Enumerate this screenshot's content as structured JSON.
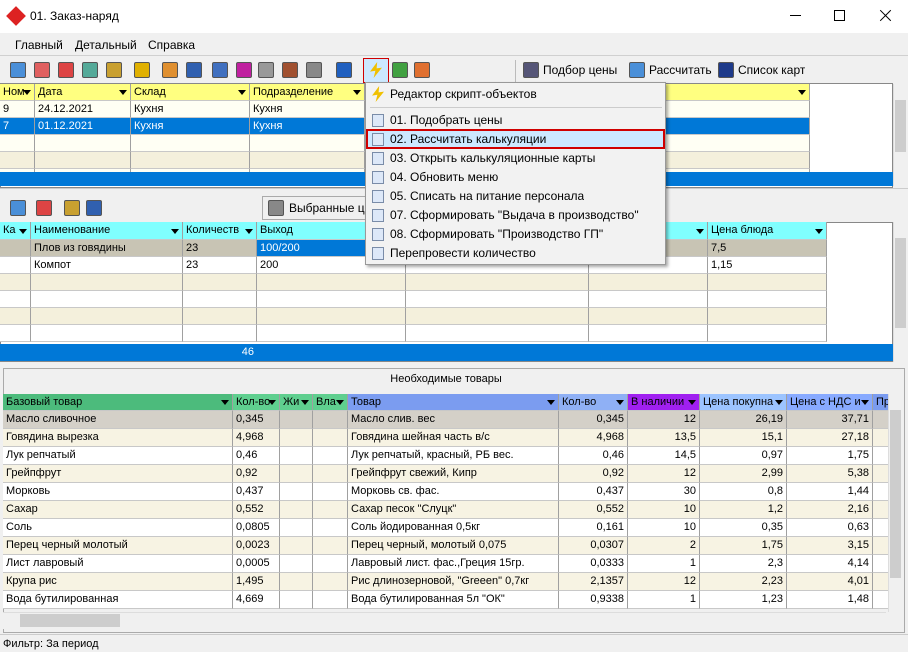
{
  "window": {
    "title": "01. Заказ-наряд"
  },
  "menu": [
    "Главный",
    "Детальный",
    "Справка"
  ],
  "toolbar": {
    "buttons": [
      "Подбор цены",
      "Рассчитать",
      "Список карт"
    ]
  },
  "orders": {
    "columns": [
      "Ном",
      "Дата",
      "Склад",
      "Подразделение"
    ],
    "rows": [
      [
        "9",
        "24.12.2021",
        "Кухня",
        "Кухня"
      ],
      [
        "7",
        "01.12.2021",
        "Кухня",
        "Кухня"
      ]
    ]
  },
  "script_menu": {
    "header": "Редактор скрипт-объектов",
    "items": [
      "01. Подобрать цены",
      "02. Рассчитать калькуляции",
      "03. Открыть калькуляционные карты",
      "04. Обновить меню",
      "05. Списать на питание персонала",
      "07. Сформировать \"Выдача в производство\"",
      "08. Сформировать \"Производство ГП\"",
      "Перепровести количество"
    ]
  },
  "detail_toolbar": {
    "tab": "Выбранные ц"
  },
  "dishes": {
    "columns": [
      "Ка",
      "Наименование",
      "Количеств",
      "Выход",
      "Цена блюда"
    ],
    "rows": [
      [
        "Плов из говядины",
        "23",
        "100/200",
        "7,5"
      ],
      [
        "Компот",
        "23",
        "200",
        "1,15"
      ]
    ],
    "total": "46"
  },
  "goods": {
    "title": "Необходимые товары",
    "columns": [
      "Базовый товар",
      "Кол-во",
      "Жи",
      "Вла",
      "Товар",
      "Кол-во",
      "В наличии",
      "Цена покупна",
      "Цена с НДС и",
      "Пр"
    ],
    "rows": [
      [
        "Масло сливочное",
        "0,345",
        "Масло слив. вес",
        "0,345",
        "12",
        "26,19",
        "37,71"
      ],
      [
        "Говядина вырезка",
        "4,968",
        "Говядина шейная часть  в/с",
        "4,968",
        "13,5",
        "15,1",
        "27,18"
      ],
      [
        "Лук репчатый",
        "0,46",
        "Лук репчатый, красный, РБ вес.",
        "0,46",
        "14,5",
        "0,97",
        "1,75"
      ],
      [
        "Грейпфрут",
        "0,92",
        "Грейпфрут свежий, Кипр",
        "0,92",
        "12",
        "2,99",
        "5,38"
      ],
      [
        "Морковь",
        "0,437",
        "Морковь св. фас.",
        "0,437",
        "30",
        "0,8",
        "1,44"
      ],
      [
        "Сахар",
        "0,552",
        "Сахар песок \"Слуцк\"",
        "0,552",
        "10",
        "1,2",
        "2,16"
      ],
      [
        "Соль",
        "0,0805",
        "Соль йодированная 0,5кг",
        "0,161",
        "10",
        "0,35",
        "0,63"
      ],
      [
        "Перец черный молотый",
        "0,0023",
        "Перец черный, молотый 0,075",
        "0,0307",
        "2",
        "1,75",
        "3,15"
      ],
      [
        "Лист лавровый",
        "0,0005",
        "Лавровый лист. фас.,Греция 15гр.",
        "0,0333",
        "1",
        "2,3",
        "4,14"
      ],
      [
        "Крупа рис",
        "1,495",
        "Рис длинозерновой, \"Greeen\" 0,7кг",
        "2,1357",
        "12",
        "2,23",
        "4,01"
      ],
      [
        "Вода бутилированная",
        "4,669",
        "Вода бутилированная 5л \"ОК\"",
        "0,9338",
        "1",
        "1,23",
        "1,48"
      ]
    ]
  },
  "status": "Фильтр: За период"
}
